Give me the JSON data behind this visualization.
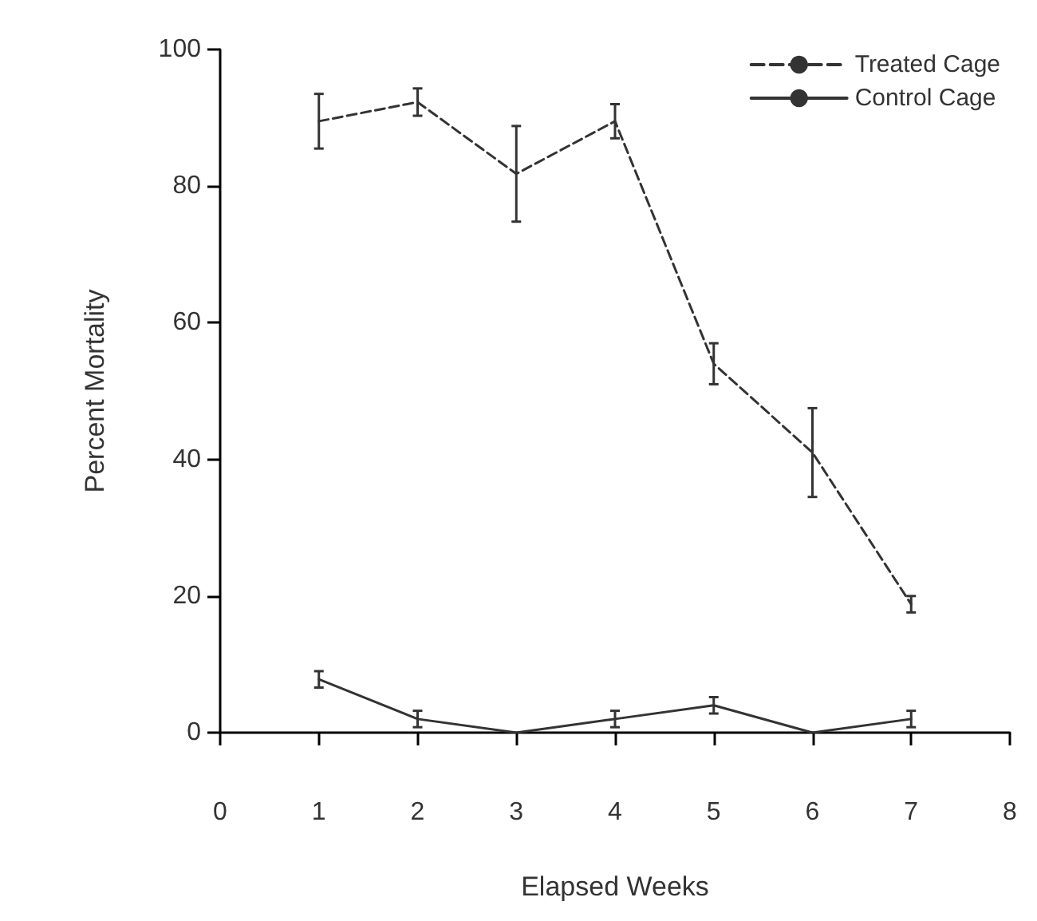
{
  "chart_data": {
    "type": "line",
    "xlabel": "Elapsed Weeks",
    "ylabel": "Percent Mortality",
    "x": [
      1,
      2,
      3,
      4,
      5,
      6,
      7
    ],
    "series": [
      {
        "name": "Treated Cage",
        "color": "#333333",
        "line_style": "dashed",
        "values": [
          89.5,
          92.3,
          81.8,
          89.5,
          54,
          41,
          18.8
        ],
        "errors": [
          4,
          2,
          7,
          2.5,
          3,
          6.5,
          1.2
        ]
      },
      {
        "name": "Control Cage",
        "color": "#333333",
        "line_style": "solid",
        "values": [
          7.8,
          2,
          0,
          2,
          4,
          0,
          2
        ],
        "errors": [
          1.2,
          1.2,
          null,
          1.2,
          1.2,
          null,
          1.2
        ]
      }
    ],
    "xlim": [
      0,
      8
    ],
    "xticks": [
      0,
      1,
      2,
      3,
      4,
      5,
      6,
      7,
      8
    ],
    "ylim": [
      0,
      100
    ],
    "yticks": [
      0,
      20,
      40,
      60,
      80,
      100
    ],
    "grid": false,
    "legend": "top right"
  }
}
